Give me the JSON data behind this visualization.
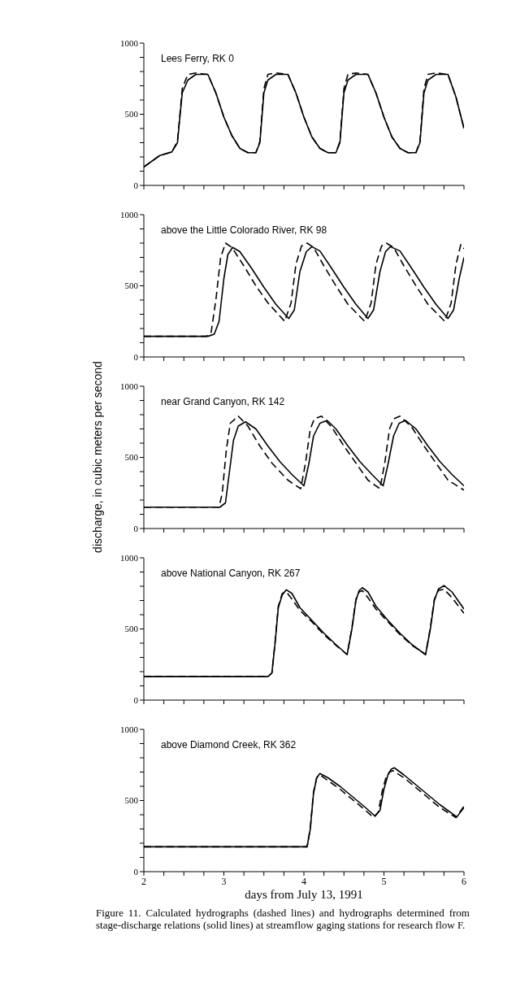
{
  "chart_data": [
    {
      "type": "line",
      "title": "Lees Ferry, RK 0",
      "xlim": [
        2,
        6
      ],
      "xticks": [
        2,
        {
          "value": 2.25,
          "label": null
        },
        {
          "value": 2.5,
          "label": null
        },
        {
          "value": 2.75,
          "label": null
        },
        3,
        {
          "value": 3.25,
          "label": null
        },
        {
          "value": 3.5,
          "label": null
        },
        {
          "value": 3.75,
          "label": null
        },
        4,
        {
          "value": 4.25,
          "label": null
        },
        {
          "value": 4.5,
          "label": null
        },
        {
          "value": 4.75,
          "label": null
        },
        5,
        {
          "value": 5.25,
          "label": null
        },
        {
          "value": 5.5,
          "label": null
        },
        {
          "value": 5.75,
          "label": null
        },
        6
      ],
      "ylim": [
        0,
        1000
      ],
      "yticks": [
        0,
        {
          "value": 100,
          "label": null
        },
        {
          "value": 200,
          "label": null
        },
        {
          "value": 300,
          "label": null
        },
        {
          "value": 400,
          "label": null
        },
        500,
        {
          "value": 600,
          "label": null
        },
        {
          "value": 700,
          "label": null
        },
        {
          "value": 800,
          "label": null
        },
        {
          "value": 900,
          "label": null
        },
        1000
      ],
      "tick_labels": "y",
      "series": [
        {
          "color": "#000000",
          "line_style": "solid",
          "x": [
            2.0,
            2.1,
            2.2,
            2.35,
            2.42,
            2.48,
            2.55,
            2.65,
            2.8,
            2.9,
            3.0,
            3.1,
            3.2,
            3.3,
            3.4,
            3.45,
            3.5,
            3.55,
            3.65,
            3.8,
            3.9,
            4.0,
            4.1,
            4.2,
            4.3,
            4.4,
            4.45,
            4.5,
            4.55,
            4.65,
            4.8,
            4.9,
            5.0,
            5.1,
            5.2,
            5.3,
            5.4,
            5.45,
            5.5,
            5.55,
            5.65,
            5.8,
            5.9,
            6.0
          ],
          "values": [
            130,
            170,
            210,
            235,
            300,
            650,
            740,
            780,
            780,
            650,
            480,
            350,
            260,
            230,
            230,
            300,
            650,
            740,
            780,
            780,
            650,
            480,
            340,
            260,
            230,
            230,
            300,
            650,
            740,
            780,
            780,
            650,
            480,
            340,
            260,
            230,
            230,
            300,
            650,
            740,
            780,
            780,
            620,
            400
          ]
        },
        {
          "color": "#000000",
          "line_style": "dashed",
          "x": [
            2.0,
            2.1,
            2.2,
            2.35,
            2.42,
            2.48,
            2.55,
            2.65,
            2.8,
            2.9,
            3.0,
            3.1,
            3.2,
            3.3,
            3.4,
            3.45,
            3.5,
            3.55,
            3.65,
            3.8,
            3.9,
            4.0,
            4.1,
            4.2,
            4.3,
            4.4,
            4.45,
            4.5,
            4.55,
            4.65,
            4.8,
            4.9,
            5.0,
            5.1,
            5.2,
            5.3,
            5.4,
            5.45,
            5.5,
            5.55,
            5.65,
            5.8,
            5.9,
            6.0
          ],
          "values": [
            130,
            170,
            210,
            235,
            310,
            680,
            780,
            790,
            780,
            650,
            480,
            350,
            260,
            230,
            230,
            310,
            680,
            780,
            790,
            780,
            650,
            480,
            340,
            260,
            230,
            230,
            310,
            680,
            780,
            790,
            780,
            650,
            480,
            340,
            260,
            230,
            230,
            310,
            680,
            780,
            790,
            780,
            620,
            400
          ]
        }
      ]
    },
    {
      "type": "line",
      "title": "above the Little Colorado River, RK 98",
      "xlim": [
        2,
        6
      ],
      "xticks": [
        2,
        {
          "value": 2.25,
          "label": null
        },
        {
          "value": 2.5,
          "label": null
        },
        {
          "value": 2.75,
          "label": null
        },
        3,
        {
          "value": 3.25,
          "label": null
        },
        {
          "value": 3.5,
          "label": null
        },
        {
          "value": 3.75,
          "label": null
        },
        4,
        {
          "value": 4.25,
          "label": null
        },
        {
          "value": 4.5,
          "label": null
        },
        {
          "value": 4.75,
          "label": null
        },
        5,
        {
          "value": 5.25,
          "label": null
        },
        {
          "value": 5.5,
          "label": null
        },
        {
          "value": 5.75,
          "label": null
        },
        6
      ],
      "ylim": [
        0,
        1000
      ],
      "yticks": [
        0,
        {
          "value": 100,
          "label": null
        },
        {
          "value": 200,
          "label": null
        },
        {
          "value": 300,
          "label": null
        },
        {
          "value": 400,
          "label": null
        },
        500,
        {
          "value": 600,
          "label": null
        },
        {
          "value": 700,
          "label": null
        },
        {
          "value": 800,
          "label": null
        },
        {
          "value": 900,
          "label": null
        },
        1000
      ],
      "tick_labels": "y",
      "series": [
        {
          "color": "#000000",
          "line_style": "solid",
          "x": [
            2.0,
            2.8,
            2.88,
            2.94,
            3.0,
            3.05,
            3.11,
            3.2,
            3.35,
            3.5,
            3.65,
            3.81,
            3.88,
            3.95,
            4.03,
            4.1,
            4.2,
            4.35,
            4.5,
            4.65,
            4.8,
            4.87,
            4.95,
            5.02,
            5.08,
            5.2,
            5.35,
            5.5,
            5.65,
            5.8,
            5.87,
            5.94,
            6.0
          ],
          "values": [
            145,
            145,
            160,
            250,
            550,
            720,
            770,
            740,
            620,
            490,
            370,
            270,
            330,
            600,
            740,
            775,
            745,
            620,
            490,
            370,
            270,
            330,
            600,
            740,
            775,
            745,
            620,
            490,
            370,
            270,
            330,
            550,
            700
          ]
        },
        {
          "color": "#000000",
          "line_style": "dashed",
          "x": [
            2.0,
            2.78,
            2.84,
            2.9,
            2.96,
            3.02,
            3.1,
            3.25,
            3.4,
            3.55,
            3.76,
            3.84,
            3.9,
            3.97,
            4.04,
            4.12,
            4.25,
            4.4,
            4.55,
            4.76,
            4.84,
            4.9,
            4.97,
            5.03,
            5.12,
            5.25,
            5.4,
            5.55,
            5.76,
            5.84,
            5.9,
            5.96,
            6.0
          ],
          "values": [
            145,
            145,
            170,
            400,
            700,
            800,
            770,
            640,
            500,
            380,
            250,
            380,
            650,
            780,
            800,
            770,
            640,
            500,
            370,
            250,
            380,
            650,
            780,
            800,
            770,
            640,
            500,
            370,
            250,
            380,
            650,
            790,
            760
          ]
        }
      ]
    },
    {
      "type": "line",
      "title": "near Grand Canyon, RK 142",
      "ylabel": "discharge, in cubic meters per second",
      "xlim": [
        2,
        6
      ],
      "xticks": [
        2,
        {
          "value": 2.25,
          "label": null
        },
        {
          "value": 2.5,
          "label": null
        },
        {
          "value": 2.75,
          "label": null
        },
        3,
        {
          "value": 3.25,
          "label": null
        },
        {
          "value": 3.5,
          "label": null
        },
        {
          "value": 3.75,
          "label": null
        },
        4,
        {
          "value": 4.25,
          "label": null
        },
        {
          "value": 4.5,
          "label": null
        },
        {
          "value": 4.75,
          "label": null
        },
        5,
        {
          "value": 5.25,
          "label": null
        },
        {
          "value": 5.5,
          "label": null
        },
        {
          "value": 5.75,
          "label": null
        },
        6
      ],
      "ylim": [
        0,
        1000
      ],
      "yticks": [
        0,
        {
          "value": 100,
          "label": null
        },
        {
          "value": 200,
          "label": null
        },
        {
          "value": 300,
          "label": null
        },
        {
          "value": 400,
          "label": null
        },
        500,
        {
          "value": 600,
          "label": null
        },
        {
          "value": 700,
          "label": null
        },
        {
          "value": 800,
          "label": null
        },
        {
          "value": 900,
          "label": null
        },
        1000
      ],
      "tick_labels": "y",
      "series": [
        {
          "color": "#000000",
          "line_style": "solid",
          "x": [
            2.0,
            2.95,
            3.02,
            3.07,
            3.12,
            3.18,
            3.27,
            3.4,
            3.55,
            3.7,
            3.85,
            4.0,
            4.06,
            4.12,
            4.2,
            4.29,
            4.4,
            4.55,
            4.7,
            4.85,
            4.99,
            5.05,
            5.12,
            5.19,
            5.27,
            5.4,
            5.55,
            5.7,
            5.85,
            6.0
          ],
          "values": [
            150,
            150,
            180,
            400,
            620,
            720,
            750,
            700,
            580,
            470,
            380,
            300,
            450,
            650,
            740,
            760,
            700,
            580,
            470,
            380,
            300,
            450,
            650,
            740,
            760,
            700,
            580,
            470,
            380,
            300
          ]
        },
        {
          "color": "#000000",
          "line_style": "dashed",
          "x": [
            2.0,
            2.94,
            2.98,
            3.03,
            3.08,
            3.18,
            3.3,
            3.45,
            3.6,
            3.8,
            3.96,
            4.02,
            4.08,
            4.13,
            4.22,
            4.35,
            4.5,
            4.65,
            4.8,
            4.95,
            5.01,
            5.07,
            5.12,
            5.2,
            5.35,
            5.5,
            5.65,
            5.8,
            6.0
          ],
          "values": [
            150,
            150,
            250,
            550,
            740,
            790,
            720,
            580,
            460,
            340,
            280,
            460,
            700,
            770,
            790,
            710,
            580,
            460,
            340,
            280,
            460,
            700,
            770,
            790,
            710,
            580,
            460,
            340,
            270
          ]
        }
      ]
    },
    {
      "type": "line",
      "title": "above National Canyon, RK 267",
      "xlim": [
        2,
        6
      ],
      "xticks": [
        2,
        {
          "value": 2.25,
          "label": null
        },
        {
          "value": 2.5,
          "label": null
        },
        {
          "value": 2.75,
          "label": null
        },
        3,
        {
          "value": 3.25,
          "label": null
        },
        {
          "value": 3.5,
          "label": null
        },
        {
          "value": 3.75,
          "label": null
        },
        4,
        {
          "value": 4.25,
          "label": null
        },
        {
          "value": 4.5,
          "label": null
        },
        {
          "value": 4.75,
          "label": null
        },
        5,
        {
          "value": 5.25,
          "label": null
        },
        {
          "value": 5.5,
          "label": null
        },
        {
          "value": 5.75,
          "label": null
        },
        6
      ],
      "ylim": [
        0,
        1000
      ],
      "yticks": [
        0,
        {
          "value": 100,
          "label": null
        },
        {
          "value": 200,
          "label": null
        },
        {
          "value": 300,
          "label": null
        },
        {
          "value": 400,
          "label": null
        },
        500,
        {
          "value": 600,
          "label": null
        },
        {
          "value": 700,
          "label": null
        },
        {
          "value": 800,
          "label": null
        },
        {
          "value": 900,
          "label": null
        },
        1000
      ],
      "tick_labels": "y",
      "series": [
        {
          "color": "#000000",
          "line_style": "solid",
          "x": [
            2.0,
            3.55,
            3.6,
            3.64,
            3.68,
            3.73,
            3.78,
            3.85,
            3.95,
            4.1,
            4.25,
            4.4,
            4.54,
            4.6,
            4.65,
            4.69,
            4.73,
            4.8,
            4.9,
            5.05,
            5.2,
            5.35,
            5.52,
            5.58,
            5.63,
            5.68,
            5.75,
            5.85,
            6.0
          ],
          "values": [
            165,
            165,
            190,
            400,
            650,
            740,
            775,
            750,
            650,
            560,
            470,
            390,
            320,
            500,
            700,
            770,
            790,
            760,
            660,
            560,
            470,
            390,
            320,
            500,
            700,
            780,
            805,
            760,
            640
          ]
        },
        {
          "color": "#000000",
          "line_style": "dashed",
          "x": [
            2.0,
            3.55,
            3.6,
            3.64,
            3.68,
            3.73,
            3.78,
            3.85,
            3.95,
            4.1,
            4.25,
            4.4,
            4.54,
            4.6,
            4.65,
            4.69,
            4.73,
            4.8,
            4.9,
            5.05,
            5.2,
            5.35,
            5.52,
            5.58,
            5.63,
            5.68,
            5.75,
            5.85,
            6.0
          ],
          "values": [
            165,
            165,
            190,
            410,
            660,
            750,
            760,
            710,
            630,
            550,
            460,
            385,
            320,
            510,
            710,
            760,
            770,
            720,
            640,
            550,
            460,
            385,
            320,
            510,
            710,
            770,
            780,
            720,
            610
          ]
        }
      ]
    },
    {
      "type": "line",
      "title": "above Diamond Creek, RK 362",
      "xlabel": "days from July 13, 1991",
      "annotations": [
        "Figure 11.  Calculated hydrographs (dashed lines) and hydrographs determined from stage-discharge relations (solid lines) at streamflow gaging stations for research flow F."
      ],
      "xlim": [
        2,
        6
      ],
      "xticks": [
        2,
        {
          "value": 2.25,
          "label": null
        },
        {
          "value": 2.5,
          "label": null
        },
        {
          "value": 2.75,
          "label": null
        },
        3,
        {
          "value": 3.25,
          "label": null
        },
        {
          "value": 3.5,
          "label": null
        },
        {
          "value": 3.75,
          "label": null
        },
        4,
        {
          "value": 4.25,
          "label": null
        },
        {
          "value": 4.5,
          "label": null
        },
        {
          "value": 4.75,
          "label": null
        },
        5,
        {
          "value": 5.25,
          "label": null
        },
        {
          "value": 5.5,
          "label": null
        },
        {
          "value": 5.75,
          "label": null
        },
        6
      ],
      "ylim": [
        0,
        1000
      ],
      "yticks": [
        0,
        {
          "value": 100,
          "label": null
        },
        {
          "value": 200,
          "label": null
        },
        {
          "value": 300,
          "label": null
        },
        {
          "value": 400,
          "label": null
        },
        500,
        {
          "value": 600,
          "label": null
        },
        {
          "value": 700,
          "label": null
        },
        {
          "value": 800,
          "label": null
        },
        {
          "value": 900,
          "label": null
        },
        1000
      ],
      "series": [
        {
          "color": "#000000",
          "line_style": "solid",
          "x": [
            2.0,
            4.04,
            4.08,
            4.12,
            4.16,
            4.2,
            4.3,
            4.45,
            4.6,
            4.75,
            4.89,
            4.95,
            5.0,
            5.05,
            5.09,
            5.13,
            5.25,
            5.4,
            5.55,
            5.7,
            5.91,
            6.0
          ],
          "values": [
            175,
            175,
            300,
            550,
            660,
            690,
            660,
            600,
            530,
            460,
            390,
            430,
            580,
            680,
            720,
            730,
            680,
            610,
            540,
            470,
            385,
            450
          ]
        },
        {
          "color": "#000000",
          "line_style": "dashed",
          "x": [
            2.0,
            4.04,
            4.08,
            4.12,
            4.16,
            4.2,
            4.3,
            4.45,
            4.6,
            4.75,
            4.87,
            4.93,
            4.98,
            5.03,
            5.07,
            5.11,
            5.25,
            5.4,
            5.55,
            5.7,
            5.9,
            6.0
          ],
          "values": [
            175,
            175,
            310,
            560,
            660,
            680,
            640,
            580,
            510,
            440,
            380,
            420,
            570,
            670,
            700,
            710,
            660,
            590,
            520,
            450,
            380,
            460
          ]
        }
      ]
    }
  ]
}
